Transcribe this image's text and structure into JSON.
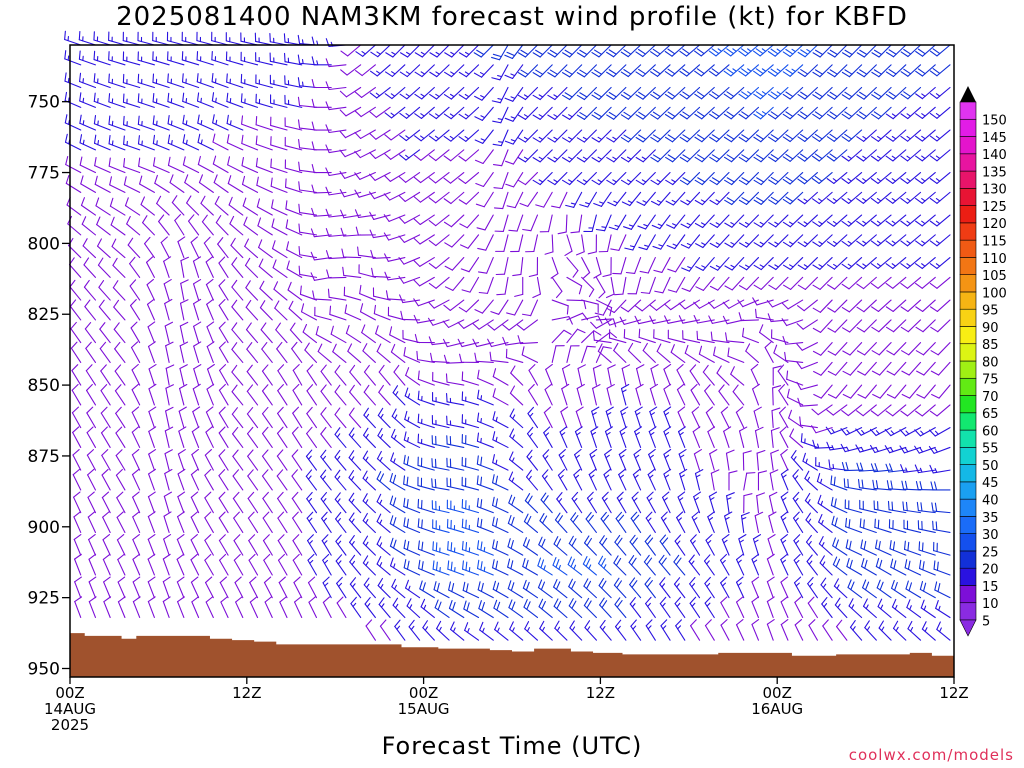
{
  "title": "2025081400 NAM3KM forecast wind profile (kt) for KBFD",
  "credit": "coolwx.com/models",
  "chart_data": {
    "type": "wind-barb-profile",
    "xlabel": "Forecast Time (UTC)",
    "ylabel": "",
    "x_hours_range": [
      0,
      60
    ],
    "y_pressure_range": [
      730,
      953
    ],
    "y_ticks": [
      750,
      775,
      800,
      825,
      850,
      875,
      900,
      925,
      950
    ],
    "x_ticks": [
      {
        "hour": 0,
        "lines": [
          "00Z",
          "14AUG",
          "2025"
        ]
      },
      {
        "hour": 12,
        "lines": [
          "12Z"
        ]
      },
      {
        "hour": 24,
        "lines": [
          "00Z",
          "15AUG"
        ]
      },
      {
        "hour": 36,
        "lines": [
          "12Z"
        ]
      },
      {
        "hour": 48,
        "lines": [
          "00Z",
          "16AUG"
        ]
      },
      {
        "hour": 60,
        "lines": [
          "12Z"
        ]
      }
    ],
    "colorbar": {
      "levels": [
        5,
        10,
        15,
        20,
        25,
        30,
        35,
        40,
        45,
        50,
        55,
        60,
        65,
        70,
        75,
        80,
        85,
        90,
        95,
        100,
        105,
        110,
        115,
        120,
        125,
        130,
        135,
        140,
        145,
        150
      ],
      "colors": [
        "#8a2be2",
        "#7d0fd8",
        "#2a12e0",
        "#1230d8",
        "#1450ee",
        "#1a6cf8",
        "#1e86f8",
        "#1aa0f2",
        "#14b8e6",
        "#12d2d2",
        "#12e2ac",
        "#12e870",
        "#22e622",
        "#62ea14",
        "#a0f014",
        "#dcf414",
        "#f8ee14",
        "#f8d214",
        "#f6b414",
        "#f49414",
        "#f27614",
        "#f05a14",
        "#f03c14",
        "#ec1e14",
        "#e81434",
        "#e8146a",
        "#e814a0",
        "#e414cc",
        "#e21ce6",
        "#e034f0"
      ]
    },
    "ground_color": "#a0522d",
    "ground_pressure": [
      [
        0,
        937.5
      ],
      [
        1,
        938.5
      ],
      [
        3.5,
        939.5
      ],
      [
        4.5,
        938.5
      ],
      [
        9.5,
        939.5
      ],
      [
        11,
        940
      ],
      [
        12.5,
        940.5
      ],
      [
        14,
        941.5
      ],
      [
        19,
        941.5
      ],
      [
        22.5,
        942.5
      ],
      [
        25,
        943
      ],
      [
        28.5,
        943.5
      ],
      [
        30,
        944
      ],
      [
        31.5,
        943
      ],
      [
        34,
        944
      ],
      [
        35.5,
        944.5
      ],
      [
        37.5,
        945
      ],
      [
        44,
        944.5
      ],
      [
        49,
        945.5
      ],
      [
        52,
        945
      ],
      [
        57,
        944.5
      ],
      [
        58.5,
        945.5
      ],
      [
        60,
        946
      ]
    ],
    "time_step_hours": 1,
    "pressure_levels": [
      730,
      737,
      745,
      752,
      760,
      767,
      775,
      782,
      790,
      797,
      805,
      812,
      820,
      827,
      835,
      842,
      850,
      857,
      865,
      872,
      880,
      887,
      895,
      902,
      910,
      917,
      925,
      932,
      940,
      947
    ],
    "wind_anchors": [
      {
        "p": 730,
        "dir": [
          [
            0,
            290
          ],
          [
            5,
            285
          ],
          [
            11,
            285
          ],
          [
            16,
            280
          ],
          [
            19,
            265
          ],
          [
            20,
            230
          ],
          [
            23,
            225
          ],
          [
            26,
            225
          ],
          [
            29,
            225
          ],
          [
            30,
            210
          ],
          [
            32,
            225
          ],
          [
            36,
            225
          ],
          [
            44,
            230
          ],
          [
            48,
            230
          ],
          [
            52,
            225
          ],
          [
            56,
            225
          ],
          [
            60,
            230
          ]
        ],
        "spd": [
          [
            0,
            15
          ],
          [
            10,
            15
          ],
          [
            16,
            15
          ],
          [
            20,
            12
          ],
          [
            24,
            15
          ],
          [
            30,
            18
          ],
          [
            36,
            20
          ],
          [
            44,
            22
          ],
          [
            48,
            25
          ],
          [
            52,
            22
          ],
          [
            56,
            20
          ],
          [
            60,
            18
          ]
        ]
      },
      {
        "p": 775,
        "dir": [
          [
            0,
            300
          ],
          [
            5,
            290
          ],
          [
            11,
            300
          ],
          [
            16,
            285
          ],
          [
            18,
            270
          ],
          [
            20,
            250
          ],
          [
            24,
            235
          ],
          [
            28,
            230
          ],
          [
            30,
            200
          ],
          [
            32,
            225
          ],
          [
            36,
            225
          ],
          [
            44,
            225
          ],
          [
            48,
            225
          ],
          [
            52,
            230
          ],
          [
            56,
            230
          ],
          [
            60,
            230
          ]
        ],
        "spd": [
          [
            0,
            12
          ],
          [
            10,
            12
          ],
          [
            16,
            10
          ],
          [
            20,
            10
          ],
          [
            24,
            12
          ],
          [
            30,
            10
          ],
          [
            36,
            15
          ],
          [
            44,
            18
          ],
          [
            48,
            20
          ],
          [
            52,
            18
          ],
          [
            56,
            15
          ],
          [
            60,
            15
          ]
        ]
      },
      {
        "p": 812,
        "dir": [
          [
            0,
            320
          ],
          [
            4,
            315
          ],
          [
            8,
            350
          ],
          [
            12,
            320
          ],
          [
            16,
            300
          ],
          [
            18,
            260
          ],
          [
            21,
            285
          ],
          [
            24,
            250
          ],
          [
            26,
            230
          ],
          [
            30,
            190
          ],
          [
            32,
            170
          ],
          [
            34,
            120
          ],
          [
            36,
            150
          ],
          [
            38,
            190
          ],
          [
            40,
            200
          ],
          [
            44,
            220
          ],
          [
            48,
            225
          ],
          [
            52,
            225
          ],
          [
            56,
            230
          ],
          [
            60,
            230
          ]
        ],
        "spd": [
          [
            0,
            10
          ],
          [
            8,
            8
          ],
          [
            12,
            8
          ],
          [
            16,
            8
          ],
          [
            20,
            8
          ],
          [
            24,
            8
          ],
          [
            30,
            8
          ],
          [
            34,
            8
          ],
          [
            38,
            10
          ],
          [
            44,
            12
          ],
          [
            48,
            12
          ],
          [
            52,
            12
          ],
          [
            56,
            12
          ],
          [
            60,
            12
          ]
        ]
      },
      {
        "p": 850,
        "dir": [
          [
            0,
            330
          ],
          [
            4,
            325
          ],
          [
            7,
            350
          ],
          [
            10,
            340
          ],
          [
            12,
            320
          ],
          [
            16,
            330
          ],
          [
            19,
            320
          ],
          [
            23,
            320
          ],
          [
            25,
            290
          ],
          [
            27,
            280
          ],
          [
            30,
            300
          ],
          [
            32,
            330
          ],
          [
            34,
            345
          ],
          [
            36,
            350
          ],
          [
            40,
            345
          ],
          [
            44,
            320
          ],
          [
            46,
            310
          ],
          [
            48,
            360
          ],
          [
            52,
            220
          ],
          [
            56,
            220
          ],
          [
            60,
            220
          ]
        ],
        "spd": [
          [
            0,
            10
          ],
          [
            8,
            12
          ],
          [
            12,
            10
          ],
          [
            16,
            12
          ],
          [
            20,
            10
          ],
          [
            24,
            12
          ],
          [
            28,
            12
          ],
          [
            30,
            10
          ],
          [
            34,
            10
          ],
          [
            38,
            12
          ],
          [
            44,
            12
          ],
          [
            48,
            10
          ],
          [
            52,
            10
          ],
          [
            56,
            10
          ],
          [
            60,
            10
          ]
        ]
      },
      {
        "p": 887,
        "dir": [
          [
            0,
            335
          ],
          [
            4,
            330
          ],
          [
            7,
            345
          ],
          [
            10,
            330
          ],
          [
            12,
            325
          ],
          [
            16,
            325
          ],
          [
            19,
            320
          ],
          [
            22,
            310
          ],
          [
            24,
            290
          ],
          [
            26,
            280
          ],
          [
            28,
            285
          ],
          [
            30,
            295
          ],
          [
            32,
            320
          ],
          [
            34,
            330
          ],
          [
            36,
            335
          ],
          [
            40,
            335
          ],
          [
            44,
            350
          ],
          [
            46,
            10
          ],
          [
            48,
            350
          ],
          [
            52,
            300
          ],
          [
            54,
            280
          ],
          [
            56,
            275
          ],
          [
            60,
            270
          ]
        ],
        "spd": [
          [
            0,
            12
          ],
          [
            8,
            12
          ],
          [
            12,
            12
          ],
          [
            16,
            12
          ],
          [
            20,
            15
          ],
          [
            24,
            20
          ],
          [
            26,
            22
          ],
          [
            28,
            22
          ],
          [
            30,
            18
          ],
          [
            34,
            15
          ],
          [
            38,
            15
          ],
          [
            44,
            12
          ],
          [
            48,
            12
          ],
          [
            52,
            15
          ],
          [
            54,
            22
          ],
          [
            56,
            20
          ],
          [
            60,
            18
          ]
        ]
      },
      {
        "p": 917,
        "dir": [
          [
            0,
            340
          ],
          [
            4,
            335
          ],
          [
            7,
            340
          ],
          [
            10,
            330
          ],
          [
            12,
            330
          ],
          [
            16,
            330
          ],
          [
            18,
            330
          ],
          [
            22,
            310
          ],
          [
            24,
            295
          ],
          [
            26,
            290
          ],
          [
            28,
            290
          ],
          [
            30,
            295
          ],
          [
            32,
            300
          ],
          [
            34,
            305
          ],
          [
            36,
            310
          ],
          [
            38,
            315
          ],
          [
            40,
            320
          ],
          [
            42,
            320
          ],
          [
            44,
            325
          ],
          [
            46,
            335
          ],
          [
            48,
            340
          ],
          [
            50,
            330
          ],
          [
            54,
            300
          ],
          [
            56,
            300
          ],
          [
            60,
            290
          ]
        ],
        "spd": [
          [
            0,
            10
          ],
          [
            8,
            10
          ],
          [
            12,
            12
          ],
          [
            16,
            12
          ],
          [
            20,
            15
          ],
          [
            24,
            18
          ],
          [
            26,
            24
          ],
          [
            28,
            25
          ],
          [
            30,
            22
          ],
          [
            32,
            22
          ],
          [
            34,
            24
          ],
          [
            36,
            24
          ],
          [
            38,
            22
          ],
          [
            40,
            20
          ],
          [
            44,
            15
          ],
          [
            48,
            12
          ],
          [
            52,
            15
          ],
          [
            54,
            20
          ],
          [
            56,
            22
          ],
          [
            60,
            20
          ]
        ]
      },
      {
        "p": 947,
        "dir": [
          [
            0,
            340
          ],
          [
            5,
            340
          ],
          [
            8,
            340
          ],
          [
            12,
            340
          ],
          [
            16,
            340
          ],
          [
            20,
            330
          ],
          [
            24,
            330
          ],
          [
            28,
            310
          ],
          [
            32,
            315
          ],
          [
            36,
            320
          ],
          [
            40,
            330
          ],
          [
            44,
            330
          ],
          [
            48,
            340
          ],
          [
            52,
            330
          ],
          [
            56,
            320
          ],
          [
            60,
            315
          ]
        ],
        "spd": [
          [
            0,
            8
          ],
          [
            8,
            10
          ],
          [
            12,
            10
          ],
          [
            16,
            10
          ],
          [
            20,
            10
          ],
          [
            24,
            12
          ],
          [
            28,
            12
          ],
          [
            32,
            15
          ],
          [
            36,
            15
          ],
          [
            40,
            12
          ],
          [
            44,
            10
          ],
          [
            48,
            10
          ],
          [
            52,
            10
          ],
          [
            56,
            12
          ],
          [
            60,
            12
          ]
        ]
      }
    ]
  }
}
